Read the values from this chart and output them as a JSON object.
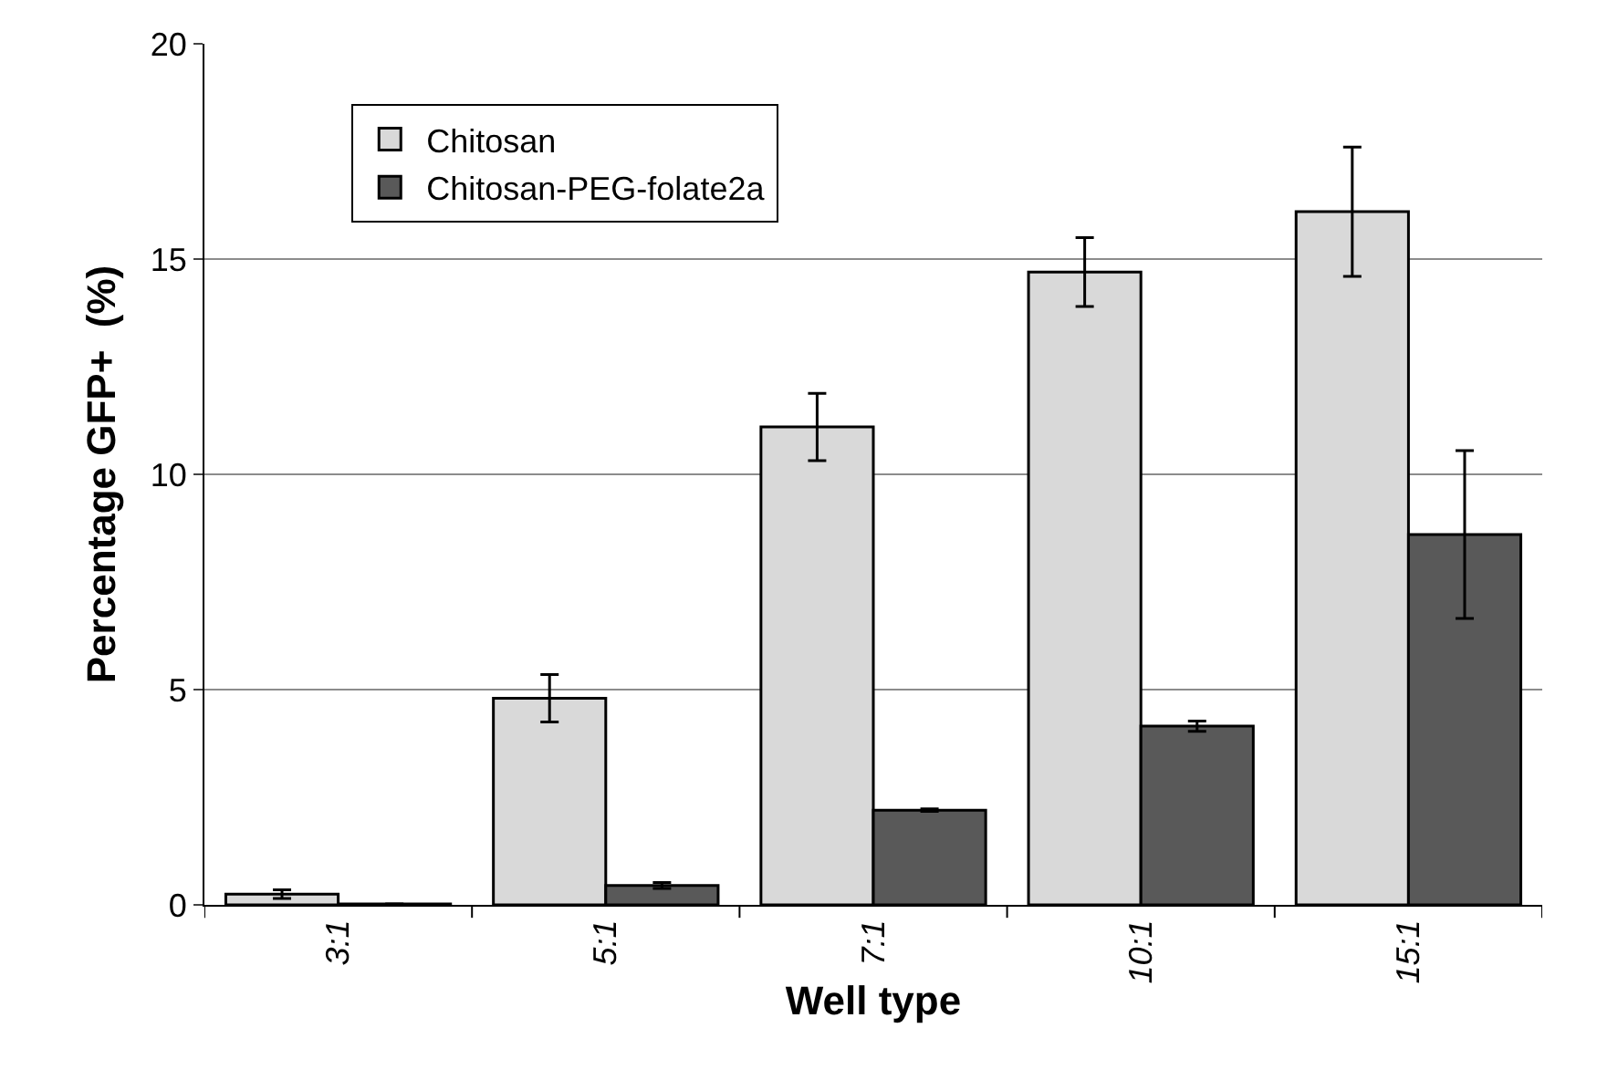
{
  "chart_data": {
    "type": "bar",
    "xlabel": "Well type",
    "ylabel": "Percentage GFP+  (%)",
    "categories": [
      "3:1",
      "5:1",
      "7:1",
      "10:1",
      "15:1"
    ],
    "series": [
      {
        "name": "Chitosan",
        "color": "#d9d9d9",
        "values": [
          0.25,
          4.8,
          11.1,
          14.7,
          16.1
        ],
        "errors": [
          0.1,
          0.55,
          0.78,
          0.8,
          1.5
        ]
      },
      {
        "name": "Chitosan-PEG-folate2a",
        "color": "#595959",
        "values": [
          0.02,
          0.45,
          2.2,
          4.15,
          8.6
        ],
        "errors": [
          null,
          0.07,
          0.03,
          0.12,
          1.95
        ]
      }
    ],
    "ylim": [
      0,
      20
    ],
    "yticks": [
      0,
      5,
      10,
      15,
      20
    ],
    "grid": "y",
    "legend": "top left"
  }
}
